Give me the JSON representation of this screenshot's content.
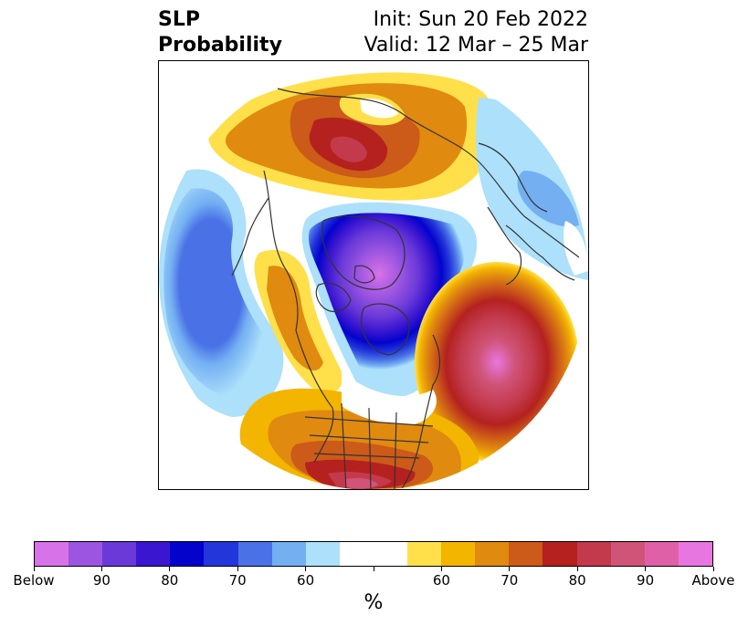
{
  "title": {
    "left_line1": "SLP",
    "left_line2": "Probability",
    "right_line1": "Init: Sun 20 Feb 2022",
    "right_line2": "Valid: 12 Mar – 25 Mar"
  },
  "colorbar": {
    "colors": [
      "#d872e8",
      "#9b55e0",
      "#6a39d8",
      "#3a16d0",
      "#0303cc",
      "#2236da",
      "#4a72e6",
      "#74aff2",
      "#ace0fb",
      "#ffffff",
      "#ffffff",
      "#ffe04a",
      "#f3b500",
      "#e08a10",
      "#cc5a18",
      "#b4211f",
      "#c33a4c",
      "#d05478",
      "#e060a8",
      "#e876e0"
    ],
    "tick_labels": [
      "Below",
      "90",
      "80",
      "70",
      "60",
      "",
      "60",
      "70",
      "80",
      "90",
      "Above"
    ],
    "unit": "%"
  }
}
